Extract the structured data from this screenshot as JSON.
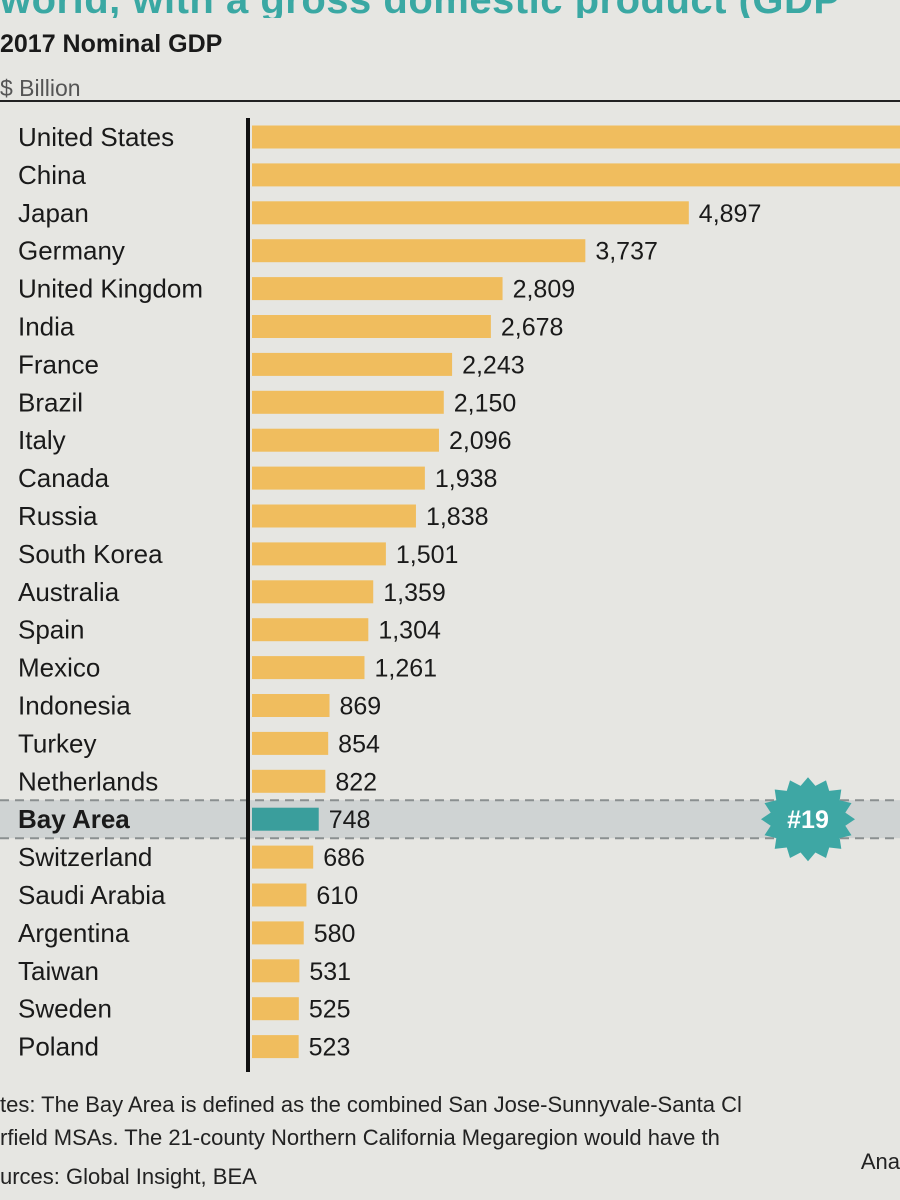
{
  "page": {
    "heading": "world, with a gross domestic product (GDP",
    "notes": {
      "line1": "tes: The Bay Area is defined as the combined San Jose-Sunnyvale-Santa Cl",
      "line2": "rfield MSAs. The 21-county Northern California Megaregion would have th",
      "line2_right": "Ana",
      "line3": "urces: Global Insight, BEA"
    }
  },
  "colors": {
    "bar": "#f0bd5e",
    "highlight": "#3a9e9c",
    "badge": "#3ea7a4",
    "axis": "#111111"
  },
  "chart_data": {
    "type": "bar",
    "orientation": "horizontal",
    "title": "2017 Nominal GDP",
    "unit_label": "$ Billion",
    "categories": [
      "United States",
      "China",
      "Japan",
      "Germany",
      "United Kingdom",
      "India",
      "France",
      "Brazil",
      "Italy",
      "Canada",
      "Russia",
      "South Korea",
      "Australia",
      "Spain",
      "Mexico",
      "Indonesia",
      "Turkey",
      "Netherlands",
      "Bay Area",
      "Switzerland",
      "Saudi Arabia",
      "Argentina",
      "Taiwan",
      "Sweden",
      "Poland"
    ],
    "values": [
      null,
      null,
      4897,
      3737,
      2809,
      2678,
      2243,
      2150,
      2096,
      1938,
      1838,
      1501,
      1359,
      1304,
      1261,
      869,
      854,
      822,
      748,
      686,
      610,
      580,
      531,
      525,
      523
    ],
    "value_labels": [
      "",
      "",
      "4,897",
      "3,737",
      "2,809",
      "2,678",
      "2,243",
      "2,150",
      "2,096",
      "1,938",
      "1,838",
      "1,501",
      "1,359",
      "1,304",
      "1,261",
      "869",
      "854",
      "822",
      "748",
      "686",
      "610",
      "580",
      "531",
      "525",
      "523"
    ],
    "highlight": {
      "category": "Bay Area",
      "rank_badge": "#19"
    },
    "bars_cut_off": [
      "United States",
      "China"
    ],
    "legend": "none",
    "grid": false
  }
}
